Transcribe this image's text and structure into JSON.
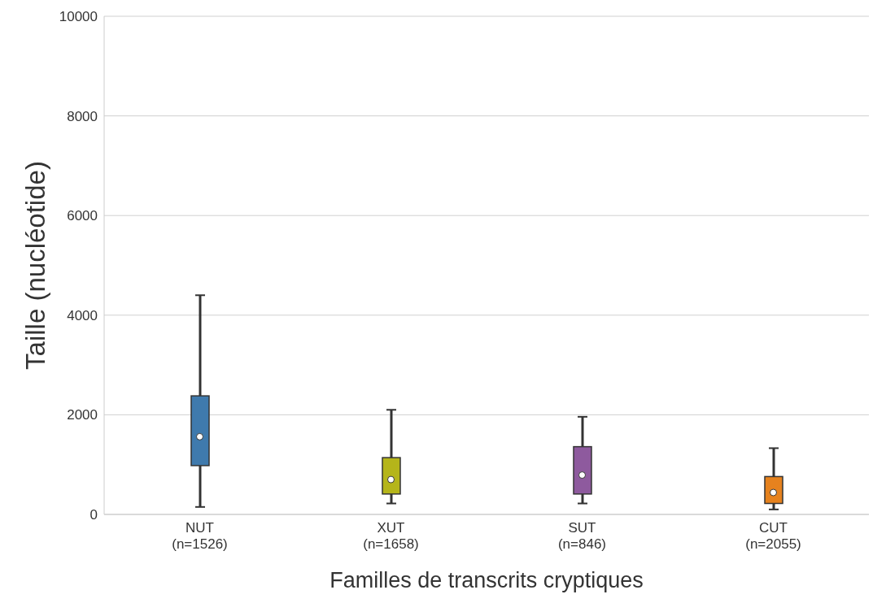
{
  "chart_data": {
    "type": "box",
    "xlabel": "Familles de transcrits cryptiques",
    "ylabel": "Taille (nucléotide)",
    "categories": [
      "NUT\n(n=1526)",
      "XUT\n(n=1658)",
      "SUT\n(n=846)",
      "CUT\n(n=2055)"
    ],
    "colors": [
      "#3f7aad",
      "#b5b51a",
      "#8e5a9e",
      "#e6821e"
    ],
    "boxes": [
      {
        "low": 150,
        "q1": 980,
        "median": 1560,
        "q3": 2380,
        "high": 4400
      },
      {
        "low": 220,
        "q1": 410,
        "median": 700,
        "q3": 1140,
        "high": 2100
      },
      {
        "low": 220,
        "q1": 410,
        "median": 790,
        "q3": 1360,
        "high": 1960
      },
      {
        "low": 100,
        "q1": 220,
        "median": 440,
        "q3": 760,
        "high": 1330
      }
    ],
    "ylim": [
      0,
      10000
    ],
    "yticks": [
      0,
      2000,
      4000,
      6000,
      8000,
      10000
    ],
    "grid": "y"
  }
}
